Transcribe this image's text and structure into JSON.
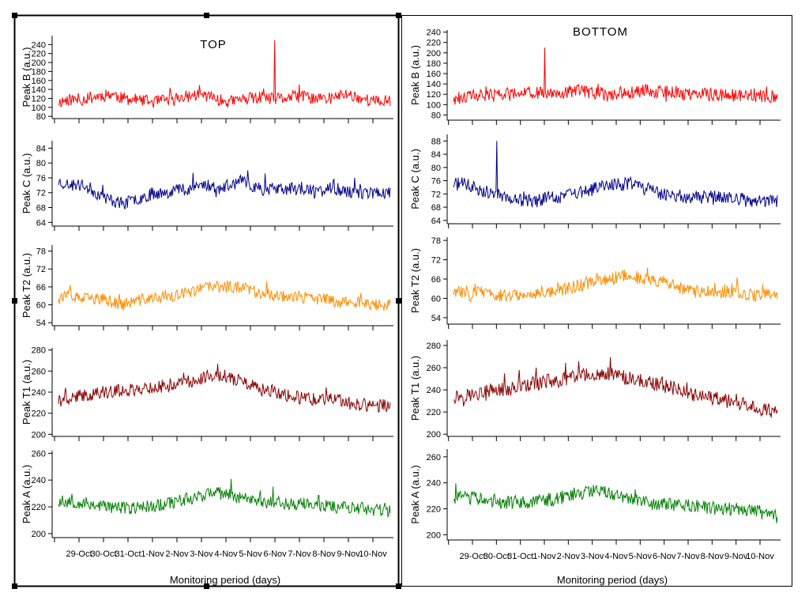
{
  "panels": [
    {
      "title": "TOP",
      "xlabel": "Monitoring period (days)"
    },
    {
      "title": "BOTTOM",
      "xlabel": "Monitoring period (days)"
    }
  ],
  "dates": [
    "29-Oct",
    "30-Oct",
    "31-Oct",
    "1-Nov",
    "2-Nov",
    "3-Nov",
    "4-Nov",
    "5-Nov",
    "6-Nov",
    "7-Nov",
    "8-Nov",
    "9-Nov",
    "10-Nov"
  ],
  "chart_data": [
    {
      "type": "line",
      "panel": "TOP",
      "ylabel": "Peak B (a.u.)",
      "color": "#ff0000",
      "ylim": [
        75,
        260
      ],
      "yticks": [
        80,
        100,
        120,
        140,
        160,
        180,
        200,
        220,
        240
      ],
      "seed": 11,
      "series": [
        {
          "values": [
            112,
            118,
            116,
            122,
            126,
            130,
            120,
            118,
            114,
            112,
            116,
            120,
            124,
            128,
            126,
            116,
            112,
            118,
            120,
            122,
            118,
            120,
            124,
            124,
            120,
            118,
            124,
            130,
            122,
            116,
            112,
            116
          ]
        }
      ],
      "spikes": [
        {
          "date": "6-Nov",
          "value": 250
        }
      ]
    },
    {
      "type": "line",
      "panel": "TOP",
      "ylabel": "Peak C (a.u.)",
      "color": "#00008b",
      "ylim": [
        63,
        86
      ],
      "yticks": [
        64,
        68,
        72,
        76,
        80,
        84
      ],
      "seed": 23,
      "series": [
        {
          "values": [
            75,
            74,
            74,
            73,
            71,
            70,
            69,
            70,
            71,
            72,
            72,
            73,
            73,
            74,
            74,
            73,
            74,
            75,
            74,
            73,
            73,
            73,
            73,
            73,
            72,
            73,
            73,
            72,
            72,
            72,
            72,
            72
          ]
        }
      ],
      "spikes": []
    },
    {
      "type": "line",
      "panel": "TOP",
      "ylabel": "Peak T2 (a.u.)",
      "color": "#ff8c00",
      "ylim": [
        53,
        80
      ],
      "yticks": [
        54,
        60,
        66,
        72,
        78
      ],
      "seed": 37,
      "series": [
        {
          "values": [
            63,
            63,
            62,
            62,
            62,
            61,
            60,
            61,
            62,
            62,
            63,
            63,
            64,
            65,
            66,
            66,
            66,
            66,
            65,
            64,
            63,
            63,
            63,
            62,
            62,
            62,
            61,
            61,
            61,
            60,
            60,
            60
          ]
        }
      ],
      "spikes": []
    },
    {
      "type": "line",
      "panel": "TOP",
      "ylabel": "Peak T1 (a.u.)",
      "color": "#8b0000",
      "ylim": [
        198,
        282
      ],
      "yticks": [
        200,
        220,
        240,
        260,
        280
      ],
      "seed": 41,
      "series": [
        {
          "values": [
            232,
            234,
            236,
            238,
            240,
            240,
            242,
            242,
            244,
            244,
            246,
            248,
            250,
            252,
            256,
            256,
            254,
            250,
            246,
            242,
            240,
            238,
            236,
            234,
            233,
            233,
            232,
            230,
            228,
            228,
            227,
            226
          ]
        }
      ],
      "spikes": []
    },
    {
      "type": "line",
      "panel": "TOP",
      "ylabel": "Peak A (a.u.)",
      "color": "#008000",
      "ylim": [
        197,
        262
      ],
      "yticks": [
        200,
        220,
        240,
        260
      ],
      "seed": 53,
      "series": [
        {
          "values": [
            224,
            224,
            223,
            222,
            221,
            220,
            219,
            219,
            220,
            221,
            222,
            224,
            226,
            228,
            230,
            230,
            229,
            227,
            226,
            224,
            223,
            223,
            222,
            222,
            221,
            221,
            220,
            220,
            219,
            218,
            218,
            217
          ]
        }
      ],
      "spikes": []
    },
    {
      "type": "line",
      "panel": "BOTTOM",
      "ylabel": "Peak B (a.u.)",
      "color": "#ff0000",
      "ylim": [
        70,
        244
      ],
      "yticks": [
        80,
        100,
        120,
        140,
        160,
        180,
        200,
        220,
        240
      ],
      "seed": 61,
      "series": [
        {
          "values": [
            112,
            114,
            116,
            118,
            118,
            120,
            120,
            122,
            122,
            120,
            124,
            124,
            126,
            124,
            122,
            120,
            122,
            124,
            126,
            126,
            124,
            124,
            122,
            120,
            120,
            118,
            118,
            118,
            118,
            118,
            116,
            116
          ]
        }
      ],
      "spikes": [
        {
          "date": "1-Nov",
          "value": 210
        }
      ]
    },
    {
      "type": "line",
      "panel": "BOTTOM",
      "ylabel": "Peak C (a.u.)",
      "color": "#00008b",
      "ylim": [
        63,
        90
      ],
      "yticks": [
        64,
        68,
        72,
        76,
        80,
        84,
        88
      ],
      "seed": 71,
      "series": [
        {
          "values": [
            75,
            75,
            74,
            73,
            72,
            71,
            70,
            70,
            70,
            71,
            71,
            72,
            72,
            73,
            74,
            75,
            75,
            75,
            74,
            73,
            72,
            72,
            71,
            71,
            71,
            71,
            71,
            71,
            70,
            70,
            70,
            70
          ]
        }
      ],
      "spikes": [
        {
          "date": "30-Oct",
          "value": 88
        }
      ]
    },
    {
      "type": "line",
      "panel": "BOTTOM",
      "ylabel": "Peak T2 (a.u.)",
      "color": "#ff8c00",
      "ylim": [
        52,
        79
      ],
      "yticks": [
        54,
        60,
        66,
        72,
        78
      ],
      "seed": 83,
      "series": [
        {
          "values": [
            62,
            62,
            62,
            62,
            61,
            61,
            61,
            61,
            62,
            62,
            63,
            63,
            64,
            65,
            66,
            66,
            67,
            67,
            66,
            66,
            65,
            64,
            63,
            62,
            62,
            62,
            62,
            62,
            61,
            61,
            61,
            61
          ]
        }
      ],
      "spikes": []
    },
    {
      "type": "line",
      "panel": "BOTTOM",
      "ylabel": "Peak T1 (a.u.)",
      "color": "#8b0000",
      "ylim": [
        198,
        285
      ],
      "yticks": [
        200,
        220,
        240,
        260,
        280
      ],
      "seed": 97,
      "series": [
        {
          "values": [
            234,
            235,
            236,
            238,
            240,
            240,
            242,
            244,
            246,
            248,
            248,
            250,
            252,
            254,
            254,
            254,
            252,
            250,
            248,
            246,
            244,
            242,
            240,
            236,
            234,
            232,
            230,
            228,
            226,
            224,
            222,
            220
          ]
        }
      ],
      "spikes": []
    },
    {
      "type": "line",
      "panel": "BOTTOM",
      "ylabel": "Peak A (a.u.)",
      "color": "#008000",
      "ylim": [
        196,
        266
      ],
      "yticks": [
        200,
        220,
        240,
        260
      ],
      "seed": 103,
      "series": [
        {
          "values": [
            229,
            228,
            228,
            227,
            226,
            225,
            225,
            225,
            226,
            227,
            228,
            230,
            232,
            233,
            234,
            232,
            230,
            228,
            226,
            224,
            224,
            223,
            222,
            222,
            221,
            221,
            220,
            220,
            219,
            218,
            216,
            214
          ]
        }
      ],
      "spikes": []
    }
  ]
}
